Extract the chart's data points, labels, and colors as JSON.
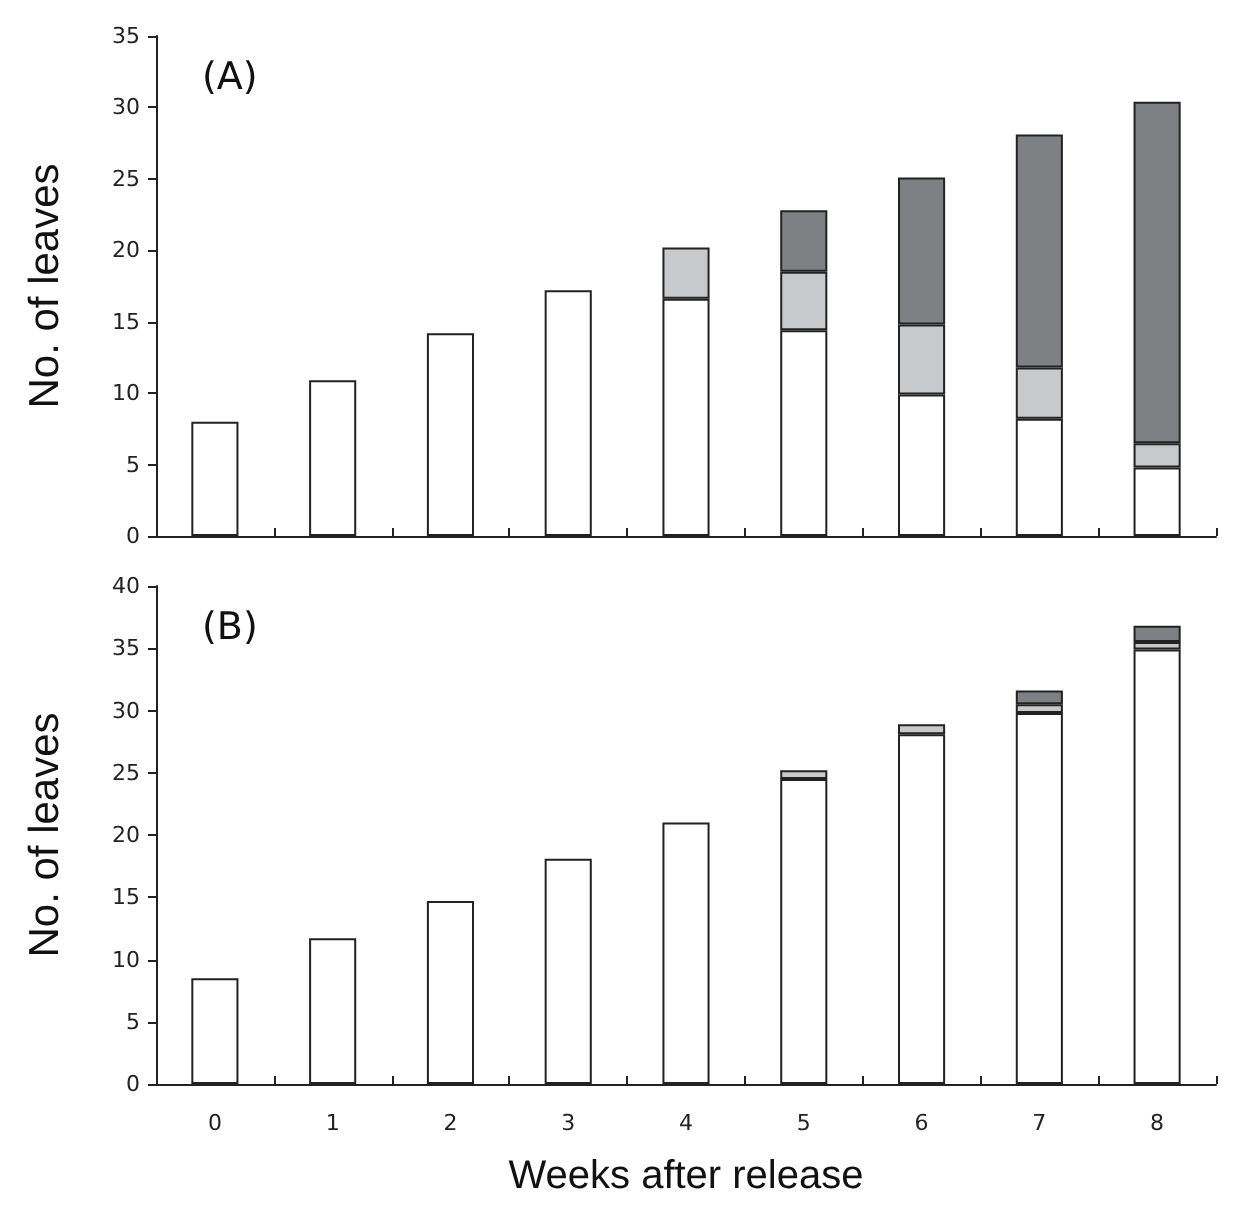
{
  "chart_data": [
    {
      "type": "bar",
      "title": "(A)",
      "ylabel": "No. of leaves",
      "categories": [
        "0",
        "1",
        "2",
        "3",
        "4",
        "5",
        "6",
        "7",
        "8"
      ],
      "stacked": true,
      "tick_labels": "y",
      "ylim": [
        0,
        35
      ],
      "yticks": [
        0,
        5,
        10,
        15,
        20,
        25,
        30,
        35
      ],
      "series": [
        {
          "color": "#ffffff",
          "values": [
            8.0,
            10.9,
            14.2,
            17.2,
            16.6,
            14.4,
            9.9,
            8.2,
            4.8
          ]
        },
        {
          "color": "#c8c9cb",
          "values": [
            null,
            null,
            null,
            null,
            3.6,
            4.1,
            4.9,
            3.6,
            1.7
          ]
        },
        {
          "color": "#7f8083",
          "values": [
            null,
            null,
            null,
            null,
            null,
            4.3,
            10.3,
            16.3,
            23.9
          ]
        }
      ]
    },
    {
      "type": "bar",
      "title": "(B)",
      "xlabel": "Weeks after release",
      "ylabel": "No. of leaves",
      "categories": [
        "0",
        "1",
        "2",
        "3",
        "4",
        "5",
        "6",
        "7",
        "8"
      ],
      "stacked": true,
      "ylim": [
        0,
        40
      ],
      "yticks": [
        0,
        5,
        10,
        15,
        20,
        25,
        30,
        35,
        40
      ],
      "series": [
        {
          "color": "#ffffff",
          "values": [
            8.5,
            11.7,
            14.7,
            18.1,
            21.0,
            24.5,
            28.1,
            29.8,
            34.9
          ]
        },
        {
          "color": "#c8c9cb",
          "values": [
            null,
            null,
            null,
            null,
            null,
            0.7,
            0.8,
            0.7,
            0.6
          ]
        },
        {
          "color": "#7f8083",
          "values": [
            null,
            null,
            null,
            null,
            null,
            null,
            null,
            1.1,
            1.3
          ]
        }
      ]
    }
  ]
}
